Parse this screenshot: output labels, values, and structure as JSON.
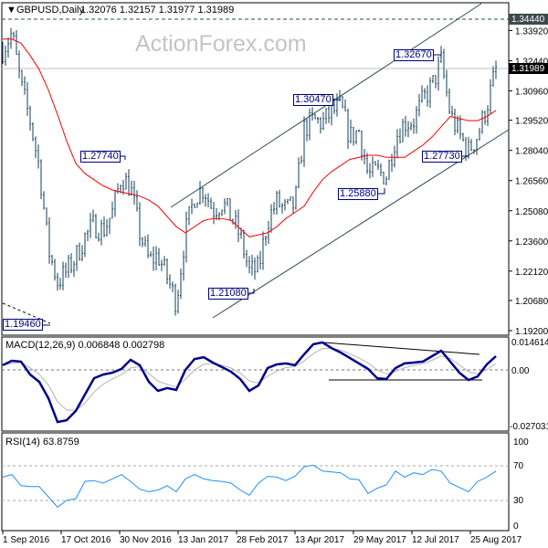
{
  "chart_data": [
    {
      "type": "ohlc",
      "title": "GBPUSD,Daily",
      "ohlc_readout": "1.32076 1.32157 1.31977 1.31989",
      "watermark": "ActionForex.com",
      "y_ticks": [
        "1.34440",
        "1.33920",
        "1.32440",
        "1.30960",
        "1.29520",
        "1.28040",
        "1.26560",
        "1.25080",
        "1.23600",
        "1.22120",
        "1.20680",
        "1.19200"
      ],
      "y_tick_values": [
        1.3444,
        1.3392,
        1.3244,
        1.3096,
        1.2952,
        1.2804,
        1.2656,
        1.2508,
        1.236,
        1.2212,
        1.2068,
        1.192
      ],
      "current_price": "1.31989",
      "resistance_level": "1.34440",
      "ylim": [
        1.192,
        1.3475
      ],
      "annotations": [
        "1.27740",
        "1.19460",
        "1.21080",
        "1.30470",
        "1.32670",
        "1.25880",
        "1.27730"
      ],
      "close_approx": [
        1.33,
        1.338,
        1.312,
        1.295,
        1.272,
        1.232,
        1.216,
        1.221,
        1.228,
        1.238,
        1.244,
        1.241,
        1.25,
        1.268,
        1.262,
        1.24,
        1.226,
        1.229,
        1.218,
        1.206,
        1.24,
        1.258,
        1.262,
        1.251,
        1.255,
        1.248,
        1.238,
        1.221,
        1.222,
        1.246,
        1.255,
        1.251,
        1.254,
        1.291,
        1.295,
        1.294,
        1.299,
        1.302,
        1.287,
        1.29,
        1.268,
        1.27,
        1.268,
        1.287,
        1.294,
        1.295,
        1.305,
        1.312,
        1.324,
        1.298,
        1.288,
        1.28,
        1.288,
        1.302,
        1.32
      ],
      "moving_average": [
        1.335,
        1.335,
        1.333,
        1.327,
        1.32,
        1.31,
        1.298,
        1.285,
        1.274,
        1.269,
        1.266,
        1.263,
        1.261,
        1.26,
        1.259,
        1.258,
        1.256,
        1.253,
        1.248,
        1.243,
        1.24,
        1.243,
        1.246,
        1.247,
        1.247,
        1.246,
        1.242,
        1.238,
        1.239,
        1.24,
        1.243,
        1.247,
        1.25,
        1.253,
        1.26,
        1.266,
        1.27,
        1.273,
        1.276,
        1.277,
        1.278,
        1.278,
        1.277,
        1.277,
        1.277,
        1.28,
        1.283,
        1.287,
        1.292,
        1.297,
        1.296,
        1.295,
        1.295,
        1.297,
        1.3
      ],
      "colors": {
        "bars": "#163f58",
        "ma": "#ff0000",
        "channel": "#2f4f4f",
        "label_border": "#000080"
      }
    },
    {
      "type": "line",
      "title": "MACD(12,26,9) 0.006848 0.002798",
      "y_ticks": [
        "0.014614",
        "0.00",
        "-0.027031"
      ],
      "ylim": [
        -0.027031,
        0.014614
      ],
      "macd": [
        0.0023,
        0.0045,
        0.0041,
        -0.0023,
        -0.0059,
        -0.014,
        -0.0258,
        -0.0249,
        -0.0203,
        -0.0122,
        -0.0041,
        -0.0023,
        -0.0014,
        0.0005,
        0.005,
        0.0023,
        -0.0059,
        -0.0104,
        -0.009,
        -0.0099,
        0,
        0.0054,
        0.0063,
        0.0036,
        0.0014,
        -0.0009,
        -0.0045,
        -0.0104,
        -0.0077,
        0.0009,
        0.0027,
        0.0032,
        0.0023,
        0.0077,
        0.0127,
        0.0136,
        0.0108,
        0.0086,
        0.0059,
        0.0032,
        0.0005,
        -0.0041,
        -0.0045,
        0.0009,
        0.0032,
        0.0036,
        0.0041,
        0.0068,
        0.0095,
        0.0041,
        -0.0014,
        -0.005,
        -0.0032,
        0.0027,
        0.0068
      ],
      "colors": {
        "macd": "#00008b",
        "signal": "#b4b4b4"
      }
    },
    {
      "type": "line",
      "title": "RSI(14) 63.8759",
      "y_ticks": [
        "100",
        "70",
        "30",
        "0"
      ],
      "ylim": [
        0,
        100
      ],
      "levels": [
        70,
        30
      ],
      "rsi": [
        57,
        60,
        47,
        46,
        46,
        34,
        22,
        30,
        32,
        52,
        53,
        50,
        55,
        60,
        52,
        43,
        40,
        42,
        47,
        40,
        55,
        60,
        55,
        53,
        52,
        50,
        42,
        36,
        50,
        58,
        57,
        53,
        58,
        69,
        71,
        64,
        63,
        62,
        55,
        54,
        38,
        44,
        48,
        64,
        57,
        62,
        60,
        66,
        64,
        50,
        45,
        40,
        52,
        57,
        64
      ],
      "colors": {
        "rsi": "#1e90ff"
      }
    }
  ],
  "x_ticks": [
    "1 Sep 2016",
    "17 Oct 2016",
    "30 Nov 2016",
    "13 Jan 2017",
    "28 Feb 2017",
    "13 Apr 2017",
    "29 May 2017",
    "12 Jul 2017",
    "25 Aug 2017"
  ]
}
